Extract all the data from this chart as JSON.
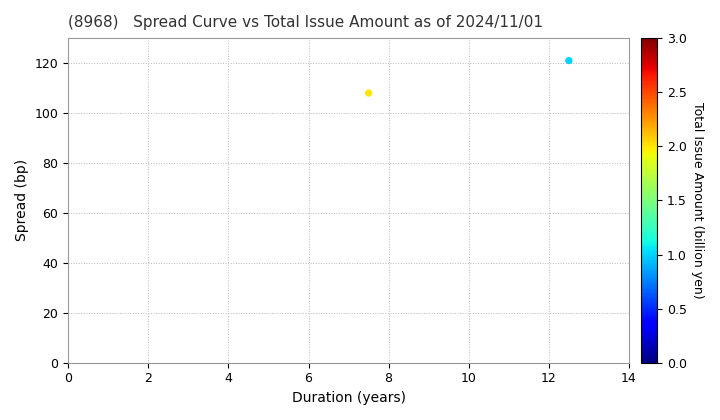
{
  "title": "(8968)   Spread Curve vs Total Issue Amount as of 2024/11/01",
  "xlabel": "Duration (years)",
  "ylabel": "Spread (bp)",
  "colorbar_label": "Total Issue Amount (billion yen)",
  "xlim": [
    0,
    14
  ],
  "ylim": [
    0,
    130
  ],
  "xticks": [
    0,
    2,
    4,
    6,
    8,
    10,
    12,
    14
  ],
  "yticks": [
    0,
    20,
    40,
    60,
    80,
    100,
    120
  ],
  "colorbar_ticks": [
    0.0,
    0.5,
    1.0,
    1.5,
    2.0,
    2.5,
    3.0
  ],
  "colorbar_vmin": 0.0,
  "colorbar_vmax": 3.0,
  "points": [
    {
      "duration": 7.5,
      "spread": 108,
      "amount": 2.0
    },
    {
      "duration": 12.5,
      "spread": 121,
      "amount": 1.0
    }
  ],
  "scatter_size": 18,
  "background_color": "#ffffff",
  "grid_color": "#bbbbbb",
  "grid_linewidth": 0.7,
  "title_fontsize": 11,
  "axis_label_fontsize": 10,
  "tick_fontsize": 9,
  "colorbar_label_fontsize": 9
}
